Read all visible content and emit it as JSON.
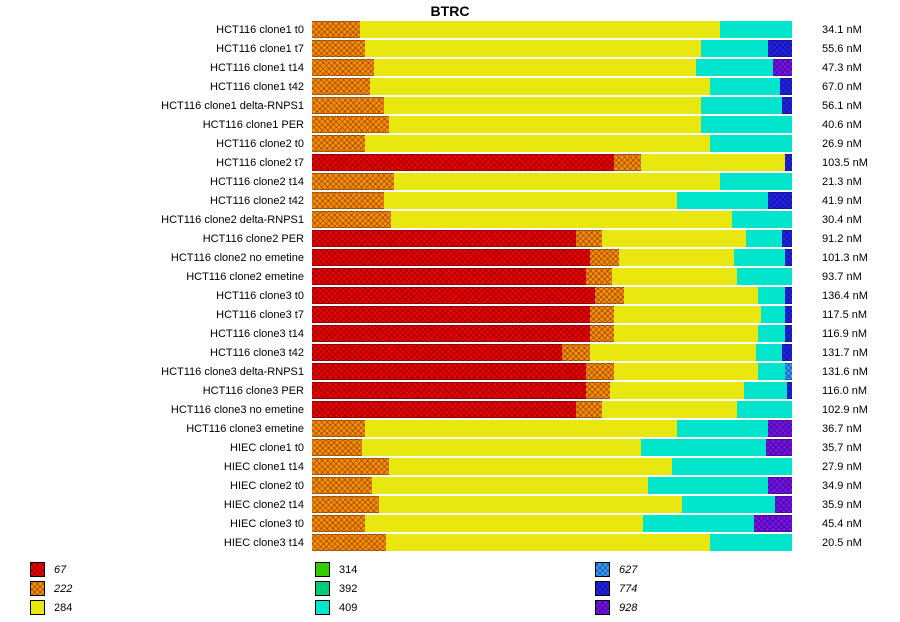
{
  "title": "BTRC",
  "chart_data": {
    "type": "bar",
    "variant": "horizontal-stacked-100pct",
    "title": "BTRC",
    "unit": "nM",
    "legend_position": "bottom",
    "legend": [
      {
        "key": "67",
        "label": "67",
        "color": "#ee0000",
        "hatched": true,
        "italic": true
      },
      {
        "key": "222",
        "label": "222",
        "color": "#ff8c00",
        "hatched": true,
        "italic": true
      },
      {
        "key": "284",
        "label": "284",
        "color": "#e8e810",
        "hatched": false,
        "italic": false
      },
      {
        "key": "314",
        "label": "314",
        "color": "#33cc00",
        "hatched": false,
        "italic": false
      },
      {
        "key": "392",
        "label": "392",
        "color": "#00cc7a",
        "hatched": false,
        "italic": false
      },
      {
        "key": "409",
        "label": "409",
        "color": "#00e5cc",
        "hatched": false,
        "italic": false
      },
      {
        "key": "627",
        "label": "627",
        "color": "#3399ff",
        "hatched": true,
        "italic": true
      },
      {
        "key": "774",
        "label": "774",
        "color": "#2222ee",
        "hatched": true,
        "italic": true
      },
      {
        "key": "928",
        "label": "928",
        "color": "#7711ee",
        "hatched": true,
        "italic": true
      }
    ],
    "rows": [
      {
        "label": "HCT116 clone1 t0",
        "value": "34.1 nM",
        "segments": [
          {
            "key": "222",
            "pct": 10
          },
          {
            "key": "284",
            "pct": 75
          },
          {
            "key": "409",
            "pct": 15
          }
        ]
      },
      {
        "label": "HCT116 clone1 t7",
        "value": "55.6 nM",
        "segments": [
          {
            "key": "222",
            "pct": 11
          },
          {
            "key": "284",
            "pct": 70
          },
          {
            "key": "409",
            "pct": 14
          },
          {
            "key": "774",
            "pct": 5
          }
        ]
      },
      {
        "label": "HCT116 clone1 t14",
        "value": "47.3 nM",
        "segments": [
          {
            "key": "222",
            "pct": 13
          },
          {
            "key": "284",
            "pct": 67
          },
          {
            "key": "409",
            "pct": 16
          },
          {
            "key": "928",
            "pct": 4
          }
        ]
      },
      {
        "label": "HCT116 clone1 t42",
        "value": "67.0 nM",
        "segments": [
          {
            "key": "222",
            "pct": 12
          },
          {
            "key": "284",
            "pct": 71
          },
          {
            "key": "409",
            "pct": 14.5
          },
          {
            "key": "774",
            "pct": 2.5
          }
        ]
      },
      {
        "label": "HCT116 clone1 delta-RNPS1",
        "value": "56.1 nM",
        "segments": [
          {
            "key": "222",
            "pct": 15
          },
          {
            "key": "284",
            "pct": 66
          },
          {
            "key": "409",
            "pct": 17
          },
          {
            "key": "774",
            "pct": 2
          }
        ]
      },
      {
        "label": "HCT116 clone1 PER",
        "value": "40.6 nM",
        "segments": [
          {
            "key": "222",
            "pct": 16
          },
          {
            "key": "284",
            "pct": 65
          },
          {
            "key": "409",
            "pct": 19
          }
        ]
      },
      {
        "label": "HCT116 clone2 t0",
        "value": "26.9 nM",
        "segments": [
          {
            "key": "222",
            "pct": 11
          },
          {
            "key": "284",
            "pct": 72
          },
          {
            "key": "409",
            "pct": 17
          }
        ]
      },
      {
        "label": "HCT116 clone2 t7",
        "value": "103.5 nM",
        "segments": [
          {
            "key": "67",
            "pct": 63
          },
          {
            "key": "222",
            "pct": 5.5
          },
          {
            "key": "284",
            "pct": 30
          },
          {
            "key": "774",
            "pct": 1.5
          }
        ]
      },
      {
        "label": "HCT116 clone2 t14",
        "value": "21.3 nM",
        "segments": [
          {
            "key": "222",
            "pct": 17
          },
          {
            "key": "284",
            "pct": 68
          },
          {
            "key": "409",
            "pct": 15
          }
        ]
      },
      {
        "label": "HCT116 clone2 t42",
        "value": "41.9 nM",
        "segments": [
          {
            "key": "222",
            "pct": 15
          },
          {
            "key": "284",
            "pct": 61
          },
          {
            "key": "409",
            "pct": 19
          },
          {
            "key": "774",
            "pct": 5
          }
        ]
      },
      {
        "label": "HCT116 clone2 delta-RNPS1",
        "value": "30.4 nM",
        "segments": [
          {
            "key": "222",
            "pct": 16.5
          },
          {
            "key": "284",
            "pct": 71
          },
          {
            "key": "409",
            "pct": 12.5
          }
        ]
      },
      {
        "label": "HCT116 clone2 PER",
        "value": "91.2 nM",
        "segments": [
          {
            "key": "67",
            "pct": 55
          },
          {
            "key": "222",
            "pct": 5.5
          },
          {
            "key": "284",
            "pct": 30
          },
          {
            "key": "409",
            "pct": 7.5
          },
          {
            "key": "774",
            "pct": 2
          }
        ]
      },
      {
        "label": "HCT116 clone2 no emetine",
        "value": "101.3 nM",
        "segments": [
          {
            "key": "67",
            "pct": 58
          },
          {
            "key": "222",
            "pct": 6
          },
          {
            "key": "284",
            "pct": 24
          },
          {
            "key": "409",
            "pct": 10.5
          },
          {
            "key": "774",
            "pct": 1.5
          }
        ]
      },
      {
        "label": "HCT116 clone2 emetine",
        "value": "93.7 nM",
        "segments": [
          {
            "key": "67",
            "pct": 57
          },
          {
            "key": "222",
            "pct": 5.5
          },
          {
            "key": "284",
            "pct": 26
          },
          {
            "key": "409",
            "pct": 11.5
          }
        ]
      },
      {
        "label": "HCT116 clone3 t0",
        "value": "136.4 nM",
        "segments": [
          {
            "key": "67",
            "pct": 59
          },
          {
            "key": "222",
            "pct": 6
          },
          {
            "key": "284",
            "pct": 28
          },
          {
            "key": "409",
            "pct": 5.5
          },
          {
            "key": "774",
            "pct": 1.5
          }
        ]
      },
      {
        "label": "HCT116 clone3 t7",
        "value": "117.5 nM",
        "segments": [
          {
            "key": "67",
            "pct": 58
          },
          {
            "key": "222",
            "pct": 5
          },
          {
            "key": "284",
            "pct": 30.5
          },
          {
            "key": "409",
            "pct": 5
          },
          {
            "key": "774",
            "pct": 1.5
          }
        ]
      },
      {
        "label": "HCT116 clone3 t14",
        "value": "116.9 nM",
        "segments": [
          {
            "key": "67",
            "pct": 58
          },
          {
            "key": "222",
            "pct": 5
          },
          {
            "key": "284",
            "pct": 30
          },
          {
            "key": "409",
            "pct": 5.5
          },
          {
            "key": "774",
            "pct": 1.5
          }
        ]
      },
      {
        "label": "HCT116 clone3 t42",
        "value": "131.7 nM",
        "segments": [
          {
            "key": "67",
            "pct": 52
          },
          {
            "key": "222",
            "pct": 6
          },
          {
            "key": "284",
            "pct": 34.5
          },
          {
            "key": "409",
            "pct": 5.5
          },
          {
            "key": "774",
            "pct": 2
          }
        ]
      },
      {
        "label": "HCT116 clone3 delta-RNPS1",
        "value": "131.6 nM",
        "segments": [
          {
            "key": "67",
            "pct": 57
          },
          {
            "key": "222",
            "pct": 6
          },
          {
            "key": "284",
            "pct": 30
          },
          {
            "key": "409",
            "pct": 5.5
          },
          {
            "key": "627",
            "pct": 1.5
          }
        ]
      },
      {
        "label": "HCT116 clone3 PER",
        "value": "116.0 nM",
        "segments": [
          {
            "key": "67",
            "pct": 57
          },
          {
            "key": "222",
            "pct": 5
          },
          {
            "key": "284",
            "pct": 28
          },
          {
            "key": "409",
            "pct": 9
          },
          {
            "key": "774",
            "pct": 1
          }
        ]
      },
      {
        "label": "HCT116 clone3 no emetine",
        "value": "102.9 nM",
        "segments": [
          {
            "key": "67",
            "pct": 55
          },
          {
            "key": "222",
            "pct": 5.5
          },
          {
            "key": "284",
            "pct": 28
          },
          {
            "key": "409",
            "pct": 11.5
          }
        ]
      },
      {
        "label": "HCT116 clone3 emetine",
        "value": "36.7 nM",
        "segments": [
          {
            "key": "222",
            "pct": 11
          },
          {
            "key": "284",
            "pct": 65
          },
          {
            "key": "409",
            "pct": 19
          },
          {
            "key": "928",
            "pct": 5
          }
        ]
      },
      {
        "label": "HIEC clone1 t0",
        "value": "35.7 nM",
        "segments": [
          {
            "key": "222",
            "pct": 10.5
          },
          {
            "key": "284",
            "pct": 58
          },
          {
            "key": "409",
            "pct": 26
          },
          {
            "key": "928",
            "pct": 5.5
          }
        ]
      },
      {
        "label": "HIEC clone1 t14",
        "value": "27.9 nM",
        "segments": [
          {
            "key": "222",
            "pct": 16
          },
          {
            "key": "284",
            "pct": 59
          },
          {
            "key": "409",
            "pct": 25
          }
        ]
      },
      {
        "label": "HIEC clone2 t0",
        "value": "34.9 nM",
        "segments": [
          {
            "key": "222",
            "pct": 12.5
          },
          {
            "key": "284",
            "pct": 57.5
          },
          {
            "key": "409",
            "pct": 25
          },
          {
            "key": "928",
            "pct": 5
          }
        ]
      },
      {
        "label": "HIEC clone2 t14",
        "value": "35.9 nM",
        "segments": [
          {
            "key": "222",
            "pct": 14
          },
          {
            "key": "284",
            "pct": 63
          },
          {
            "key": "409",
            "pct": 19.5
          },
          {
            "key": "928",
            "pct": 3.5
          }
        ]
      },
      {
        "label": "HIEC clone3 t0",
        "value": "45.4 nM",
        "segments": [
          {
            "key": "222",
            "pct": 11
          },
          {
            "key": "284",
            "pct": 58
          },
          {
            "key": "409",
            "pct": 23
          },
          {
            "key": "928",
            "pct": 8
          }
        ]
      },
      {
        "label": "HIEC clone3 t14",
        "value": "20.5 nM",
        "segments": [
          {
            "key": "222",
            "pct": 15.5
          },
          {
            "key": "284",
            "pct": 67.5
          },
          {
            "key": "409",
            "pct": 17
          }
        ]
      }
    ]
  }
}
